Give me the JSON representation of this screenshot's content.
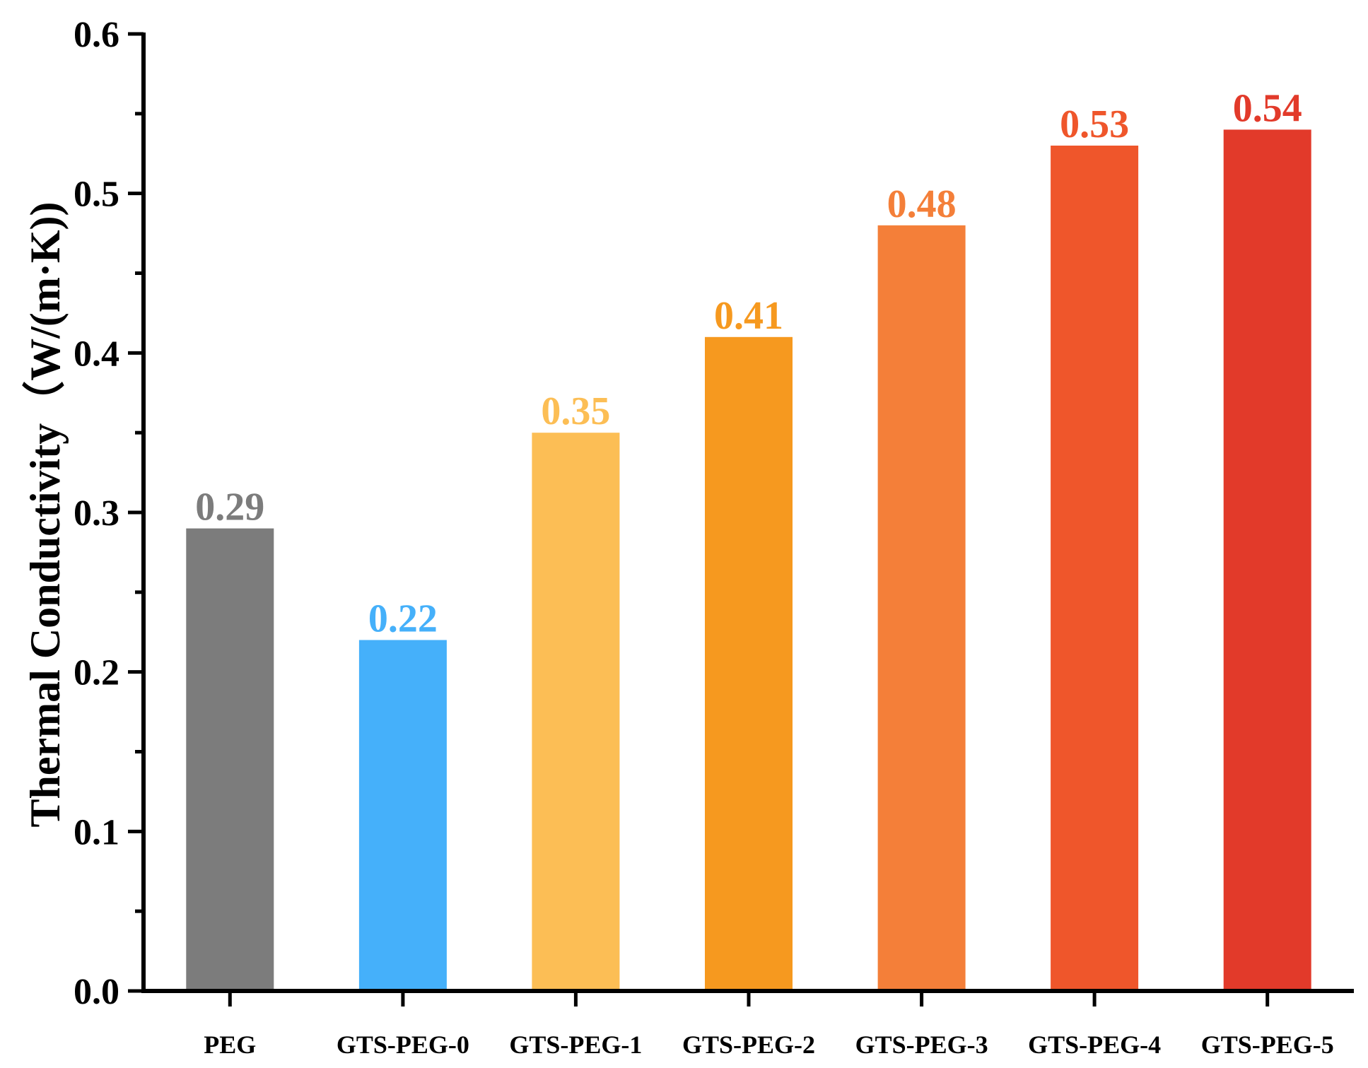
{
  "chart_data": {
    "type": "bar",
    "title": "",
    "xlabel": "",
    "ylabel": "Thermal Conductivity（W/(m·K))",
    "ylim": [
      0.0,
      0.6
    ],
    "yticks": [
      "0.0",
      "0.1",
      "0.2",
      "0.3",
      "0.4",
      "0.5",
      "0.6"
    ],
    "ytick_values": [
      0.0,
      0.1,
      0.2,
      0.3,
      0.4,
      0.5,
      0.6
    ],
    "grid": false,
    "legend": "none",
    "categories": [
      "PEG",
      "GTS-PEG-0",
      "GTS-PEG-1",
      "GTS-PEG-2",
      "GTS-PEG-3",
      "GTS-PEG-4",
      "GTS-PEG-5"
    ],
    "values": [
      0.29,
      0.22,
      0.35,
      0.41,
      0.48,
      0.53,
      0.54
    ],
    "value_labels": [
      "0.29",
      "0.22",
      "0.35",
      "0.41",
      "0.48",
      "0.53",
      "0.54"
    ],
    "colors": [
      "#7c7c7c",
      "#45b0fa",
      "#fcbe55",
      "#f6991f",
      "#f47f39",
      "#ef562b",
      "#e23a2a"
    ]
  }
}
